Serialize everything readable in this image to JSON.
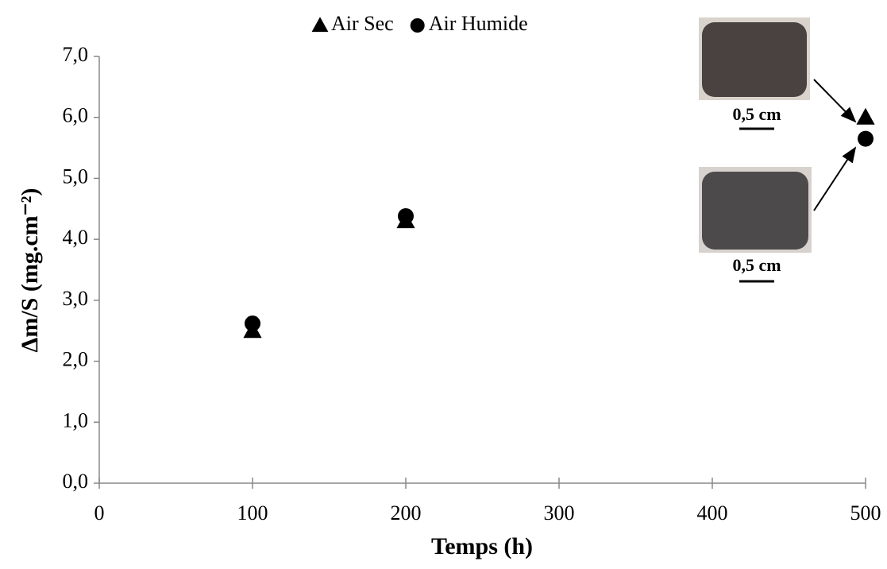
{
  "chart_data": {
    "type": "scatter",
    "x": [
      100,
      200,
      500
    ],
    "series": [
      {
        "name": "Air Sec",
        "color": "#000000",
        "marker": "triangle",
        "values": [
          2.5,
          4.3,
          6.0
        ]
      },
      {
        "name": "Air Humide",
        "color": "#000000",
        "marker": "circle",
        "values": [
          2.62,
          4.38,
          5.65
        ]
      }
    ],
    "xlabel": "Temps (h)",
    "ylabel": "Δm/S (mg.cm⁻²)",
    "xlim": [
      0,
      500
    ],
    "xticks": [
      0,
      100,
      200,
      300,
      400,
      500
    ],
    "ylim": [
      0,
      7
    ],
    "yticks": [
      {
        "value": 0,
        "label": "0,0"
      },
      {
        "value": 1,
        "label": "1,0"
      },
      {
        "value": 2,
        "label": "2,0"
      },
      {
        "value": 3,
        "label": "3,0"
      },
      {
        "value": 4,
        "label": "4,0"
      },
      {
        "value": 5,
        "label": "5,0"
      },
      {
        "value": 6,
        "label": "6,0"
      },
      {
        "value": 7,
        "label": "7,0"
      }
    ],
    "grid": false,
    "legend": "top",
    "annotations": [
      "0,5 cm",
      "0,5 cm"
    ]
  }
}
